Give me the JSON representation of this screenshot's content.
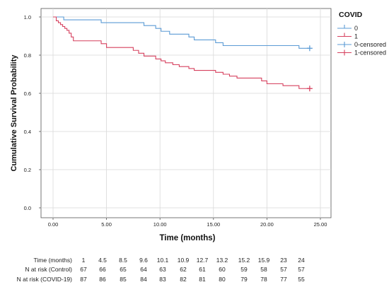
{
  "chart_data": {
    "type": "line",
    "subtype": "kaplan-meier",
    "xlabel": "Time (months)",
    "ylabel": "Cumulative Survival Probability",
    "xlim": [
      0,
      25
    ],
    "ylim": [
      0,
      1
    ],
    "x_ticks": [
      "0.00",
      "5.00",
      "10.00",
      "15.00",
      "20.00",
      "25.00"
    ],
    "y_ticks": [
      "0.0",
      "0.2",
      "0.4",
      "0.6",
      "0.8",
      "1.0"
    ],
    "grid": true,
    "legend": {
      "title": "COVID",
      "position": "top-right",
      "entries": [
        "0",
        "1",
        "0-censored",
        "1-censored"
      ]
    },
    "colors": {
      "0": "#5b9bd5",
      "1": "#d6405e"
    },
    "series": [
      {
        "name": "0",
        "steps": [
          [
            0,
            1.0
          ],
          [
            1.0,
            0.985
          ],
          [
            4.5,
            0.97
          ],
          [
            8.5,
            0.955
          ],
          [
            9.6,
            0.94
          ],
          [
            10.1,
            0.925
          ],
          [
            10.9,
            0.91
          ],
          [
            12.7,
            0.895
          ],
          [
            13.2,
            0.88
          ],
          [
            15.2,
            0.865
          ],
          [
            15.9,
            0.85
          ],
          [
            23,
            0.836
          ],
          [
            24,
            0.836
          ]
        ],
        "censored": [
          [
            24,
            0.836
          ]
        ]
      },
      {
        "name": "1",
        "steps": [
          [
            0,
            1.0
          ],
          [
            0.3,
            0.98
          ],
          [
            0.5,
            0.97
          ],
          [
            0.7,
            0.96
          ],
          [
            0.9,
            0.95
          ],
          [
            1.1,
            0.94
          ],
          [
            1.3,
            0.93
          ],
          [
            1.5,
            0.915
          ],
          [
            1.7,
            0.895
          ],
          [
            1.9,
            0.875
          ],
          [
            4.5,
            0.86
          ],
          [
            5.0,
            0.84
          ],
          [
            7.5,
            0.825
          ],
          [
            8.0,
            0.81
          ],
          [
            8.5,
            0.795
          ],
          [
            9.6,
            0.78
          ],
          [
            10.1,
            0.77
          ],
          [
            10.5,
            0.76
          ],
          [
            11.2,
            0.75
          ],
          [
            11.8,
            0.74
          ],
          [
            12.7,
            0.73
          ],
          [
            13.2,
            0.72
          ],
          [
            15.2,
            0.71
          ],
          [
            15.9,
            0.7
          ],
          [
            16.5,
            0.69
          ],
          [
            17.2,
            0.68
          ],
          [
            19.5,
            0.665
          ],
          [
            20.0,
            0.65
          ],
          [
            21.5,
            0.64
          ],
          [
            23.0,
            0.625
          ],
          [
            24,
            0.625
          ]
        ],
        "censored": [
          [
            24,
            0.625
          ]
        ]
      }
    ],
    "risk_table": {
      "header_label": "Time (months)",
      "times": [
        "1",
        "4.5",
        "8.5",
        "9.6",
        "10.1",
        "10.9",
        "12.7",
        "13.2",
        "15.2",
        "15.9",
        "23",
        "24"
      ],
      "rows": [
        {
          "label": "N at risk (Control)",
          "values": [
            "67",
            "66",
            "65",
            "64",
            "63",
            "62",
            "61",
            "60",
            "59",
            "58",
            "57",
            "57"
          ]
        },
        {
          "label": "N at risk (COVID-19)",
          "values": [
            "87",
            "86",
            "85",
            "84",
            "83",
            "82",
            "81",
            "80",
            "79",
            "78",
            "77",
            "55"
          ]
        }
      ]
    }
  }
}
